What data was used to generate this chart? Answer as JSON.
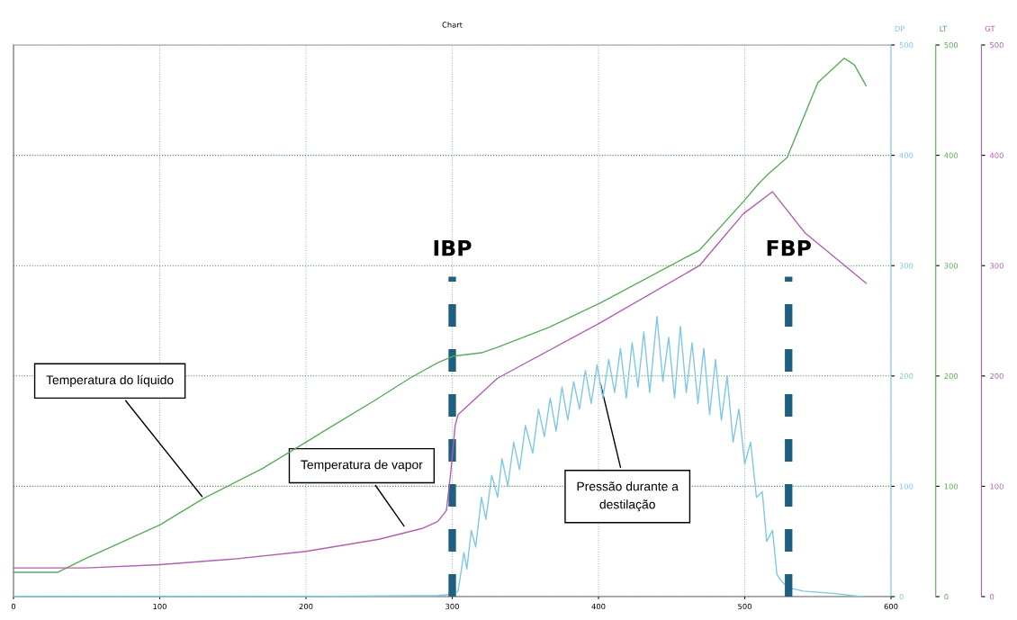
{
  "chart_data": {
    "type": "line",
    "title": "Chart",
    "ylabel": "DP",
    "y2label": "GT",
    "y3label": "LT",
    "xlim": [
      0,
      600
    ],
    "xticks": [
      0,
      100,
      200,
      300,
      400,
      500,
      600
    ],
    "ylim": [
      0,
      500
    ],
    "yticks": [
      0,
      100,
      200,
      300,
      400,
      500
    ],
    "y2lim": [
      0,
      500
    ],
    "y2ticks": [
      0,
      100,
      200,
      300,
      400,
      500
    ],
    "y3lim": [
      0,
      500
    ],
    "y3ticks": [
      0,
      100,
      200,
      300,
      400,
      500
    ],
    "grid": true,
    "line_style": "solid",
    "marker": "none",
    "series": [
      {
        "color": "#7ec8e3",
        "axis": "y",
        "x": [
          0,
          100,
          200,
          290,
          300,
          304,
          308,
          310,
          313,
          316,
          320,
          323,
          327,
          331,
          334,
          338,
          342,
          346,
          350,
          355,
          359,
          363,
          367,
          371,
          375,
          379,
          383,
          387,
          391,
          395,
          399,
          403,
          407,
          411,
          415,
          419,
          423,
          427,
          431,
          435,
          440,
          444,
          448,
          452,
          456,
          460,
          464,
          468,
          472,
          476,
          480,
          484,
          488,
          492,
          496,
          500,
          504,
          508,
          512,
          515,
          519,
          522,
          525,
          530,
          540,
          560,
          580
        ],
        "values": [
          0,
          0,
          0,
          1,
          2,
          5,
          40,
          25,
          60,
          45,
          90,
          70,
          110,
          90,
          125,
          100,
          140,
          115,
          155,
          130,
          170,
          145,
          180,
          150,
          190,
          160,
          195,
          170,
          205,
          175,
          210,
          180,
          215,
          185,
          225,
          180,
          230,
          190,
          240,
          185,
          254,
          195,
          235,
          180,
          245,
          185,
          230,
          175,
          225,
          165,
          215,
          160,
          200,
          140,
          170,
          120,
          140,
          90,
          95,
          50,
          60,
          20,
          14,
          8,
          5,
          3,
          0
        ]
      },
      {
        "color": "#5aaa5a",
        "axis": "y3",
        "x": [
          0,
          30,
          50,
          100,
          130,
          170,
          200,
          216,
          246,
          271,
          290,
          301,
          320,
          331,
          366,
          401,
          469,
          499,
          510,
          516,
          529,
          550,
          568,
          575,
          583
        ],
        "values": [
          22,
          22,
          35,
          65,
          89,
          116,
          140,
          153,
          177,
          198,
          212,
          218,
          221,
          226,
          244,
          266,
          314,
          358,
          375,
          383,
          398,
          466,
          488,
          482,
          463
        ]
      },
      {
        "color": "#b060b0",
        "axis": "y2",
        "x": [
          0,
          50,
          100,
          150,
          200,
          250,
          280,
          290,
          296,
          299,
          302,
          304,
          331,
          401,
          469,
          499,
          519,
          541,
          583
        ],
        "values": [
          26,
          26,
          29,
          34,
          41,
          52,
          62,
          68,
          78,
          113,
          155,
          165,
          198,
          248,
          300,
          347,
          367,
          330,
          284
        ]
      }
    ],
    "ref_lines": [
      {
        "axis": "x",
        "value": 300,
        "label": "IBP",
        "color": "#1f5f80",
        "line_style": "dashed"
      },
      {
        "axis": "x",
        "value": 530,
        "label": "FBP",
        "color": "#1f5f80",
        "line_style": "dashed"
      }
    ],
    "annotations": [
      {
        "text": "Temperatura do líquido",
        "x": 130,
        "y": 89
      },
      {
        "text": "Temperatura de vapor",
        "x": 268,
        "y": 62
      },
      {
        "text": "Pressão durante a\ndestilação",
        "x": 401,
        "y": 195
      }
    ]
  }
}
